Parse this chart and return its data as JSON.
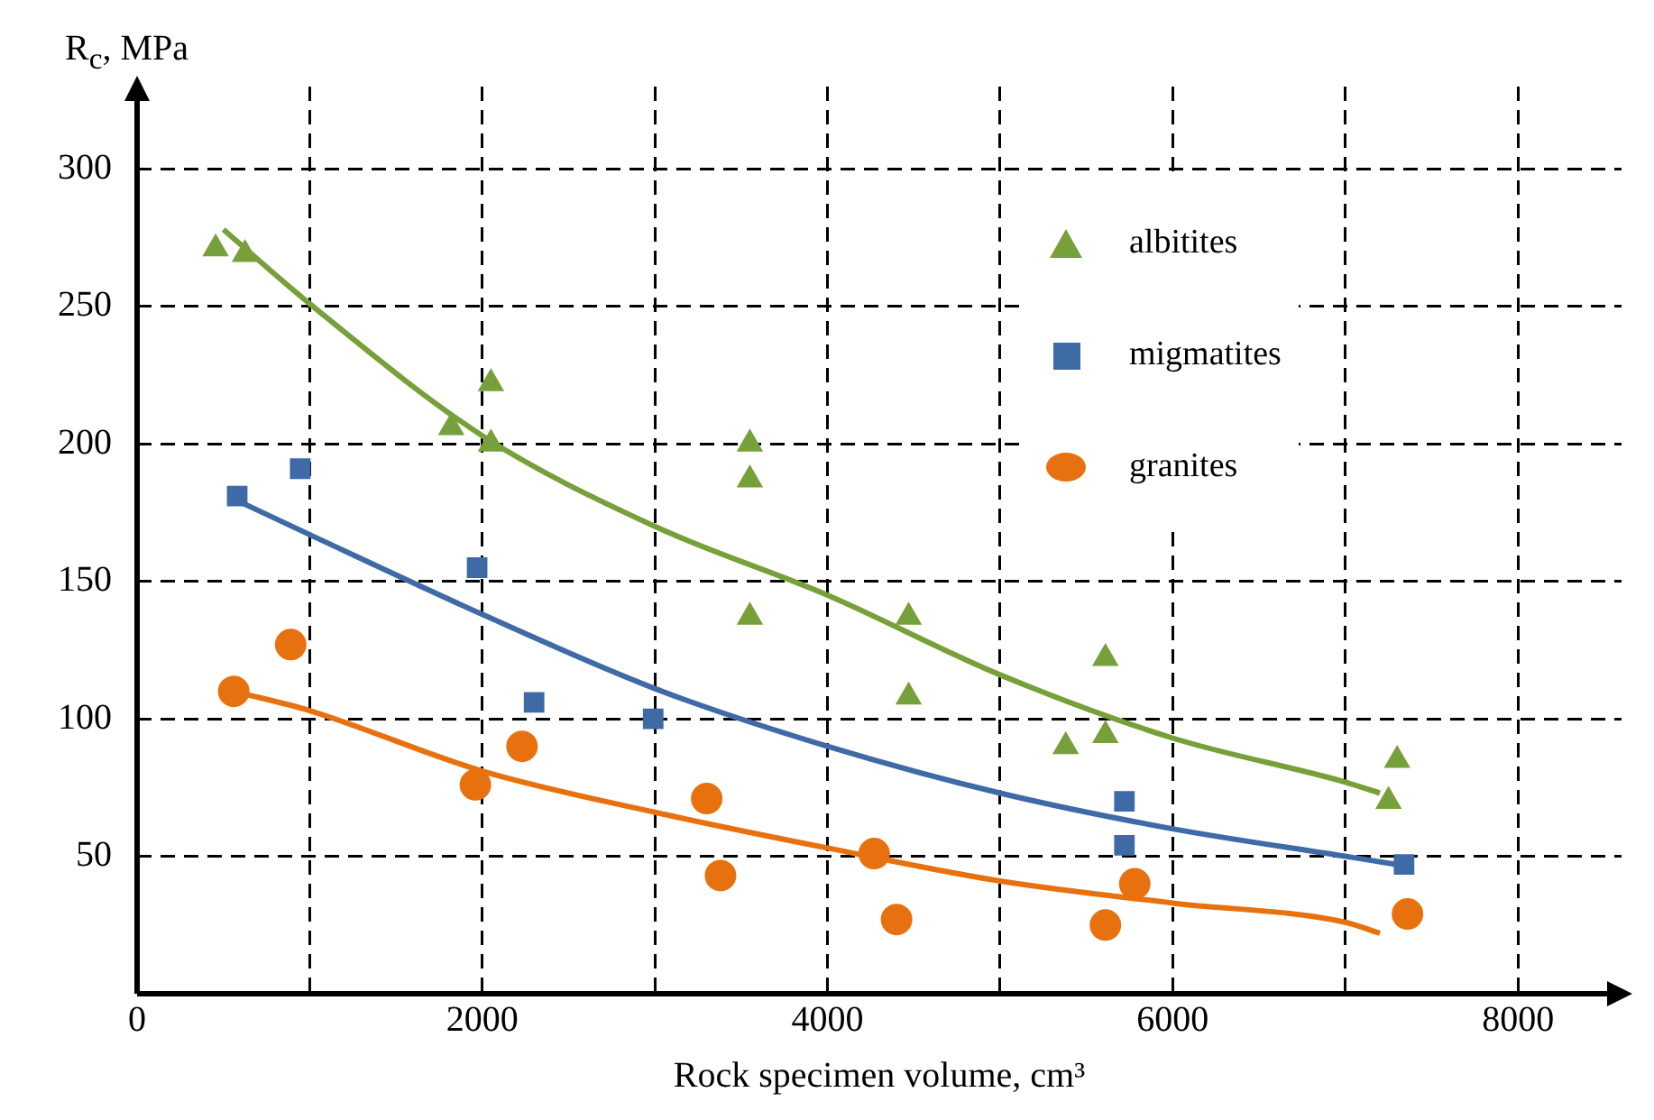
{
  "chart_data": {
    "type": "scatter",
    "xlabel": "Rock specimen volume, cm³",
    "ylabel": "R$_{c}$, MPa",
    "xlim": [
      0,
      8600
    ],
    "ylim": [
      0,
      330
    ],
    "xticks": [
      0,
      {
        "value": 1000,
        "label": null
      },
      2000,
      {
        "value": 3000,
        "label": null
      },
      4000,
      {
        "value": 5000,
        "label": null
      },
      6000,
      {
        "value": 7000,
        "label": null
      },
      8000
    ],
    "yticks": [
      50,
      100,
      150,
      200,
      250,
      300
    ],
    "grid": true,
    "legend": "top right",
    "series": [
      {
        "name": "albitites",
        "color": "#77a03a",
        "marker": "triangle",
        "x": [
          455,
          625,
          1820,
          2050,
          2050,
          3550,
          3550,
          3550,
          4470,
          4470,
          5380,
          5610,
          5610,
          7250,
          7300
        ],
        "values": [
          271,
          269,
          206,
          222,
          200,
          200,
          187,
          137,
          108,
          137,
          90,
          94,
          122,
          70,
          85
        ]
      },
      {
        "name": "migmatites",
        "color": "#3e6aa6",
        "marker": "square",
        "x": [
          580,
          945,
          1970,
          2300,
          2990,
          5720,
          5720,
          7340
        ],
        "values": [
          181,
          191,
          155,
          106,
          100,
          70,
          54,
          47
        ]
      },
      {
        "name": "granites",
        "color": "#e8710f",
        "marker": "circle",
        "x": [
          560,
          890,
          1960,
          2230,
          3300,
          3380,
          4270,
          4400,
          5610,
          5780,
          7360
        ],
        "values": [
          110,
          127,
          76,
          90,
          71,
          43,
          51,
          27,
          25,
          40,
          29
        ]
      },
      {
        "type": "line",
        "color": "#77a03a",
        "marker": "none",
        "x": [
          500,
          1000,
          2000,
          3000,
          4000,
          5000,
          6000,
          7000,
          7200
        ],
        "values": [
          278,
          251,
          203,
          170,
          145,
          116,
          93,
          77,
          73
        ]
      },
      {
        "type": "line",
        "color": "#3e6aa6",
        "marker": "none",
        "x": [
          560,
          1000,
          2000,
          3000,
          4000,
          5000,
          6000,
          7000,
          7300
        ],
        "values": [
          180,
          167,
          138,
          111,
          90,
          73,
          60,
          50,
          47
        ]
      },
      {
        "type": "line",
        "color": "#e8710f",
        "marker": "none",
        "x": [
          560,
          1000,
          2000,
          3000,
          4000,
          5000,
          6000,
          7000,
          7200
        ],
        "values": [
          110,
          103,
          81,
          66,
          53,
          41,
          33,
          26,
          22
        ]
      }
    ]
  }
}
